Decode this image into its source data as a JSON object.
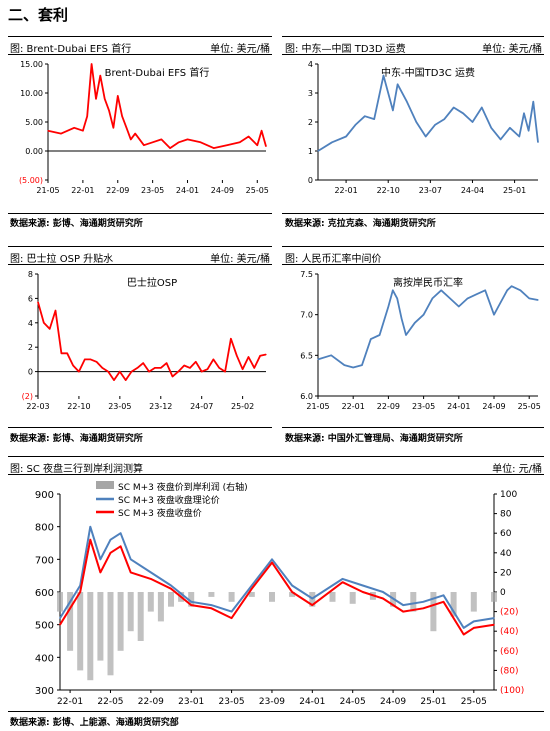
{
  "section": {
    "title": "二、套利"
  },
  "panels": [
    {
      "header": "图: Brent-Dubai EFS 首行",
      "unit": "单位: 美元/桶",
      "source": "数据来源: 彭博、海通期货研究所"
    },
    {
      "header": "图: 中东—中国 TD3D 运费",
      "unit": "单位: 美元/桶",
      "source": "数据来源: 克拉克森、海通期货研究所"
    },
    {
      "header": "图: 巴士拉 OSP 升贴水",
      "unit": "单位: 美元/桶",
      "source": "数据来源: 彭博、海通期货研究所"
    },
    {
      "header": "图: 人民币汇率中间价",
      "unit": "",
      "source": "数据来源: 中国外汇管理局、海通期货研究所"
    },
    {
      "header": "图: SC 夜盘三行到岸利润测算",
      "unit": "单位: 元/桶",
      "source": "数据来源: 彭博、上能源、海通期货研究部"
    }
  ],
  "chart_data": [
    {
      "type": "line",
      "title": "Brent-Dubai EFS 首行",
      "color": "#ff0000",
      "x_ticks": [
        "21-05",
        "22-01",
        "22-09",
        "23-05",
        "24-01",
        "24-09",
        "25-05"
      ],
      "y_ticks": [
        "15.00",
        "10.00",
        "5.00",
        "0.00",
        "(5.00)"
      ],
      "ylim": [
        -5,
        15
      ],
      "x_range": [
        "2021-05",
        "2025-07"
      ],
      "x": [
        "2021-05",
        "2021-08",
        "2021-11",
        "2022-01",
        "2022-02",
        "2022-03",
        "2022-04",
        "2022-05",
        "2022-06",
        "2022-07",
        "2022-08",
        "2022-09",
        "2022-10",
        "2022-11",
        "2022-12",
        "2023-01",
        "2023-03",
        "2023-05",
        "2023-07",
        "2023-09",
        "2023-11",
        "2024-01",
        "2024-04",
        "2024-07",
        "2024-10",
        "2025-01",
        "2025-03",
        "2025-05",
        "2025-06",
        "2025-07"
      ],
      "values": [
        3.5,
        3.0,
        4.0,
        3.5,
        6.0,
        15.0,
        9.0,
        13.0,
        9.0,
        7.0,
        4.0,
        9.5,
        6.0,
        4.0,
        2.0,
        3.0,
        1.0,
        1.5,
        2.0,
        0.5,
        1.5,
        2.0,
        1.5,
        0.5,
        1.0,
        1.5,
        2.5,
        1.0,
        3.5,
        0.8
      ]
    },
    {
      "type": "line",
      "title": "中东-中国TD3C 运费",
      "color": "#4f81bd",
      "x_ticks": [
        "22-01",
        "22-10",
        "23-07",
        "24-04",
        "25-01"
      ],
      "y_ticks": [
        "4",
        "3",
        "2",
        "1",
        "0"
      ],
      "ylim": [
        0,
        4
      ],
      "x_range": [
        "2021-07",
        "2025-06"
      ],
      "x": [
        "2021-07",
        "2021-10",
        "2022-01",
        "2022-03",
        "2022-05",
        "2022-07",
        "2022-09",
        "2022-11",
        "2022-12",
        "2023-02",
        "2023-04",
        "2023-06",
        "2023-08",
        "2023-10",
        "2023-12",
        "2024-02",
        "2024-04",
        "2024-06",
        "2024-08",
        "2024-10",
        "2024-12",
        "2025-02",
        "2025-03",
        "2025-04",
        "2025-05",
        "2025-06"
      ],
      "values": [
        1.0,
        1.3,
        1.5,
        1.9,
        2.2,
        2.1,
        3.6,
        2.4,
        3.3,
        2.7,
        2.0,
        1.5,
        1.9,
        2.1,
        2.5,
        2.3,
        2.0,
        2.5,
        1.8,
        1.4,
        1.8,
        1.5,
        2.3,
        1.7,
        2.7,
        1.3
      ]
    },
    {
      "type": "line",
      "title": "巴士拉OSP",
      "color": "#ff0000",
      "x_ticks": [
        "22-03",
        "22-10",
        "23-05",
        "23-12",
        "24-07",
        "25-02"
      ],
      "y_ticks": [
        "8",
        "6",
        "4",
        "2",
        "0",
        "(2)"
      ],
      "ylim": [
        -2,
        8
      ],
      "x_range": [
        "2022-03",
        "2025-06"
      ],
      "x": [
        "2022-03",
        "2022-04",
        "2022-05",
        "2022-06",
        "2022-07",
        "2022-08",
        "2022-09",
        "2022-10",
        "2022-11",
        "2022-12",
        "2023-01",
        "2023-02",
        "2023-03",
        "2023-04",
        "2023-05",
        "2023-06",
        "2023-07",
        "2023-08",
        "2023-09",
        "2023-10",
        "2023-11",
        "2023-12",
        "2024-01",
        "2024-02",
        "2024-03",
        "2024-04",
        "2024-05",
        "2024-06",
        "2024-07",
        "2024-08",
        "2024-09",
        "2024-10",
        "2024-11",
        "2024-12",
        "2025-01",
        "2025-02",
        "2025-03",
        "2025-04",
        "2025-05",
        "2025-06"
      ],
      "values": [
        5.7,
        4.0,
        3.5,
        5.0,
        1.5,
        1.5,
        0.5,
        0.0,
        1.0,
        1.0,
        0.8,
        0.3,
        0.0,
        -0.7,
        0.0,
        -0.7,
        0.0,
        0.3,
        0.7,
        0.0,
        0.3,
        0.3,
        0.7,
        -0.4,
        0.0,
        0.5,
        0.3,
        0.8,
        0.0,
        0.2,
        1.0,
        0.3,
        0.0,
        2.7,
        1.3,
        0.2,
        1.2,
        0.3,
        1.3,
        1.4
      ]
    },
    {
      "type": "line",
      "title": "离按岸民币汇率",
      "color": "#4f81bd",
      "x_ticks": [
        "21-05",
        "22-01",
        "22-09",
        "23-05",
        "24-01",
        "24-09",
        "25-05"
      ],
      "y_ticks": [
        "7.5",
        "7.0",
        "6.5",
        "6.0"
      ],
      "ylim": [
        6.0,
        7.5
      ],
      "x_range": [
        "2021-05",
        "2025-07"
      ],
      "x": [
        "2021-05",
        "2021-08",
        "2021-11",
        "2022-01",
        "2022-03",
        "2022-05",
        "2022-07",
        "2022-09",
        "2022-10",
        "2022-11",
        "2022-12",
        "2023-01",
        "2023-03",
        "2023-05",
        "2023-07",
        "2023-09",
        "2023-11",
        "2024-01",
        "2024-03",
        "2024-05",
        "2024-07",
        "2024-09",
        "2024-10",
        "2024-12",
        "2025-01",
        "2025-03",
        "2025-05",
        "2025-07"
      ],
      "values": [
        6.45,
        6.5,
        6.38,
        6.35,
        6.38,
        6.7,
        6.75,
        7.1,
        7.3,
        7.2,
        6.95,
        6.75,
        6.9,
        7.0,
        7.2,
        7.3,
        7.2,
        7.1,
        7.2,
        7.25,
        7.3,
        7.0,
        7.1,
        7.3,
        7.35,
        7.3,
        7.2,
        7.18
      ]
    },
    {
      "type": "line",
      "title": "",
      "x_ticks": [
        "22-01",
        "22-05",
        "22-09",
        "23-01",
        "23-05",
        "23-09",
        "24-01",
        "24-05",
        "24-09",
        "25-01",
        "25-05"
      ],
      "y_left_ticks": [
        "900",
        "800",
        "700",
        "600",
        "500",
        "400",
        "300"
      ],
      "y_right_ticks": [
        "100",
        "80",
        "60",
        "40",
        "20",
        "0",
        "(20)",
        "(40)",
        "(60)",
        "(80)",
        "(100)"
      ],
      "ylim_left": [
        300,
        900
      ],
      "ylim_right": [
        -100,
        100
      ],
      "x_range": [
        "2021-12",
        "2025-07"
      ],
      "series": [
        {
          "name": "SC M+3 夜盘价到岸利润 (右轴)",
          "color": "#a6a6a6",
          "axis": "right",
          "kind": "bar",
          "x": [
            "2021-12",
            "2022-01",
            "2022-02",
            "2022-03",
            "2022-04",
            "2022-05",
            "2022-06",
            "2022-07",
            "2022-08",
            "2022-09",
            "2022-10",
            "2022-11",
            "2022-12",
            "2023-01",
            "2023-03",
            "2023-05",
            "2023-07",
            "2023-09",
            "2023-11",
            "2024-01",
            "2024-03",
            "2024-05",
            "2024-07",
            "2024-09",
            "2024-11",
            "2025-01",
            "2025-03",
            "2025-05",
            "2025-07"
          ],
          "values": [
            -20,
            -60,
            -80,
            -90,
            -70,
            -85,
            -60,
            -40,
            -50,
            -20,
            -30,
            -15,
            -10,
            -15,
            -5,
            -10,
            -5,
            -10,
            -5,
            -15,
            -10,
            -12,
            -8,
            -15,
            -20,
            -40,
            -25,
            -20,
            -10
          ]
        },
        {
          "name": "SC M+3 夜盘收盘理论价",
          "color": "#4f81bd",
          "axis": "left",
          "kind": "line",
          "x": [
            "2021-12",
            "2022-02",
            "2022-03",
            "2022-04",
            "2022-05",
            "2022-06",
            "2022-07",
            "2022-09",
            "2022-11",
            "2023-01",
            "2023-03",
            "2023-05",
            "2023-07",
            "2023-09",
            "2023-11",
            "2024-01",
            "2024-04",
            "2024-06",
            "2024-08",
            "2024-10",
            "2024-12",
            "2025-02",
            "2025-04",
            "2025-05",
            "2025-07"
          ],
          "values": [
            520,
            620,
            800,
            700,
            760,
            780,
            700,
            660,
            620,
            570,
            560,
            540,
            620,
            700,
            620,
            580,
            640,
            620,
            600,
            560,
            570,
            590,
            490,
            510,
            520
          ]
        },
        {
          "name": "SC M+3 夜盘收盘价",
          "color": "#ff0000",
          "axis": "left",
          "kind": "line",
          "x": [
            "2021-12",
            "2022-02",
            "2022-03",
            "2022-04",
            "2022-05",
            "2022-06",
            "2022-07",
            "2022-09",
            "2022-11",
            "2023-01",
            "2023-03",
            "2023-05",
            "2023-07",
            "2023-09",
            "2023-11",
            "2024-01",
            "2024-04",
            "2024-06",
            "2024-08",
            "2024-10",
            "2024-12",
            "2025-02",
            "2025-04",
            "2025-05",
            "2025-07"
          ],
          "values": [
            500,
            600,
            760,
            660,
            720,
            740,
            660,
            640,
            610,
            560,
            550,
            520,
            610,
            690,
            600,
            560,
            630,
            600,
            580,
            540,
            550,
            570,
            470,
            490,
            500
          ]
        }
      ]
    }
  ]
}
